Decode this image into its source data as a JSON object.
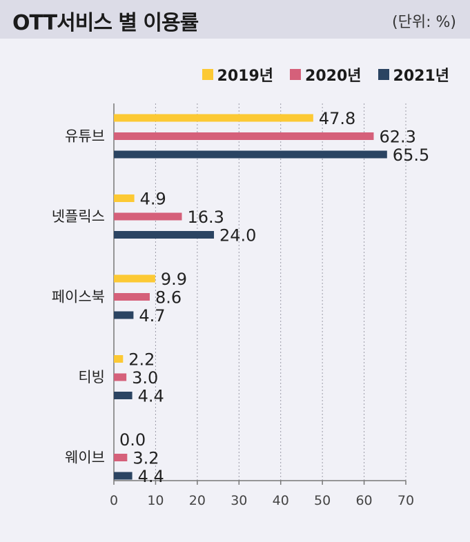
{
  "header": {
    "title": "OTT서비스 별 이용률",
    "unit": "(단위: %)"
  },
  "chart_data": {
    "type": "bar",
    "orientation": "horizontal",
    "title": "OTT서비스 별 이용률",
    "unit": "(단위: %)",
    "categories": [
      "유튜브",
      "넷플릭스",
      "페이스북",
      "티빙",
      "웨이브"
    ],
    "series": [
      {
        "name": "2019년",
        "color": "#fcc934",
        "values": [
          47.8,
          4.9,
          9.9,
          2.2,
          0.0
        ],
        "labels": [
          "47.8",
          "4.9",
          "9.9",
          "2.2",
          "0.0"
        ]
      },
      {
        "name": "2020년",
        "color": "#d5607a",
        "values": [
          62.3,
          16.3,
          8.6,
          3.0,
          3.2
        ],
        "labels": [
          "62.3",
          "16.3",
          "8.6",
          "3.0",
          "3.2"
        ]
      },
      {
        "name": "2021년",
        "color": "#2b4462",
        "values": [
          65.5,
          24.0,
          4.7,
          4.4,
          4.4
        ],
        "labels": [
          "65.5",
          "24.0",
          "4.7",
          "4.4",
          "4.4"
        ]
      }
    ],
    "xlim": [
      0,
      70
    ],
    "xticks": [
      "0",
      "10",
      "20",
      "30",
      "40",
      "50",
      "60",
      "70"
    ],
    "grid": true,
    "legend": "top-right"
  }
}
